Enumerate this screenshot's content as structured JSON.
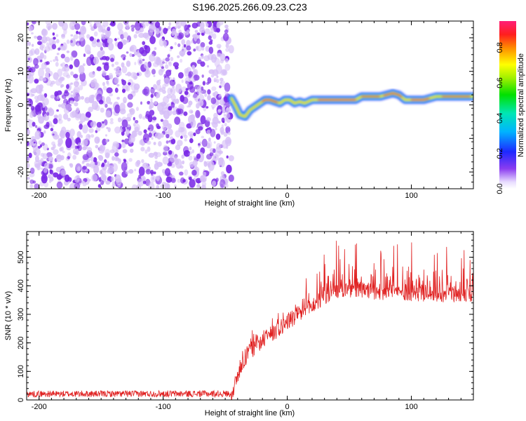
{
  "title": "S196.2025.266.09.23.C23",
  "colors": {
    "snr_line": "#e02020",
    "noise_purple": "#7a28e6",
    "noise_light": "#d6bff7",
    "axis": "#000000"
  },
  "chart_data": [
    {
      "type": "heatmap",
      "name": "spectrogram",
      "xlabel": "Height of straight line (km)",
      "ylabel": "Frequency (Hz)",
      "xlim": [
        -210,
        150
      ],
      "ylim": [
        -25,
        25
      ],
      "xticks": [
        -200,
        -100,
        0,
        100
      ],
      "yticks": [
        -20,
        -10,
        0,
        10,
        20
      ],
      "xtick_labels": [
        "-200",
        "-100",
        "0",
        "100"
      ],
      "ytick_labels": [
        "-20",
        "-10",
        "0",
        "10",
        "20"
      ],
      "noise_region_x": [
        -210,
        -45
      ],
      "signal_track": {
        "x": [
          -45,
          -42,
          -38,
          -34,
          -30,
          -26,
          -22,
          -18,
          -14,
          -10,
          -6,
          -2,
          2,
          6,
          10,
          14,
          20,
          30,
          40,
          50,
          55,
          60,
          65,
          70,
          75,
          80,
          85,
          90,
          95,
          100,
          110,
          120,
          130,
          140,
          150
        ],
        "y": [
          2,
          0,
          -3,
          -3.5,
          -1.5,
          -0.5,
          0.5,
          1.5,
          1.5,
          1,
          0.5,
          1.5,
          1.5,
          0.5,
          1,
          0.5,
          1.5,
          1.5,
          1.5,
          1.5,
          1.5,
          2.5,
          2.5,
          2.5,
          2.5,
          3,
          3.5,
          3,
          1.5,
          1.5,
          1.5,
          2.5,
          2.5,
          2.5,
          2.5
        ]
      },
      "colorbar": {
        "label": "Normalized spectral amplitude",
        "range": [
          0,
          0.95
        ],
        "ticks": [
          0.0,
          0.2,
          0.4,
          0.6,
          0.8
        ],
        "tick_labels": [
          "0.0",
          "0.2",
          "0.4",
          "0.6",
          "0.8"
        ]
      }
    },
    {
      "type": "line",
      "name": "snr",
      "xlabel": "Height of straight line (km)",
      "ylabel": "SNR (10 * v/v)",
      "xlim": [
        -210,
        150
      ],
      "ylim": [
        0,
        590
      ],
      "xticks": [
        -200,
        -100,
        0,
        100
      ],
      "yticks": [
        0,
        100,
        200,
        300,
        400,
        500
      ],
      "xtick_labels": [
        "-200",
        "-100",
        "0",
        "100"
      ],
      "ytick_labels": [
        "0",
        "100",
        "200",
        "300",
        "400",
        "500"
      ],
      "series": [
        {
          "name": "SNR",
          "x": [
            -210,
            -45,
            -40,
            -35,
            -30,
            -20,
            -10,
            0,
            10,
            20,
            30,
            40,
            50,
            60,
            70,
            80,
            90,
            100,
            110,
            120,
            130,
            140,
            150
          ],
          "baseline": [
            20,
            20,
            80,
            140,
            170,
            210,
            240,
            270,
            300,
            330,
            360,
            380,
            385,
            385,
            380,
            380,
            378,
            375,
            375,
            372,
            372,
            370,
            370
          ],
          "upper": [
            30,
            32,
            120,
            200,
            240,
            270,
            300,
            330,
            400,
            460,
            520,
            560,
            560,
            560,
            560,
            565,
            560,
            560,
            550,
            545,
            540,
            540,
            520
          ]
        }
      ]
    }
  ]
}
